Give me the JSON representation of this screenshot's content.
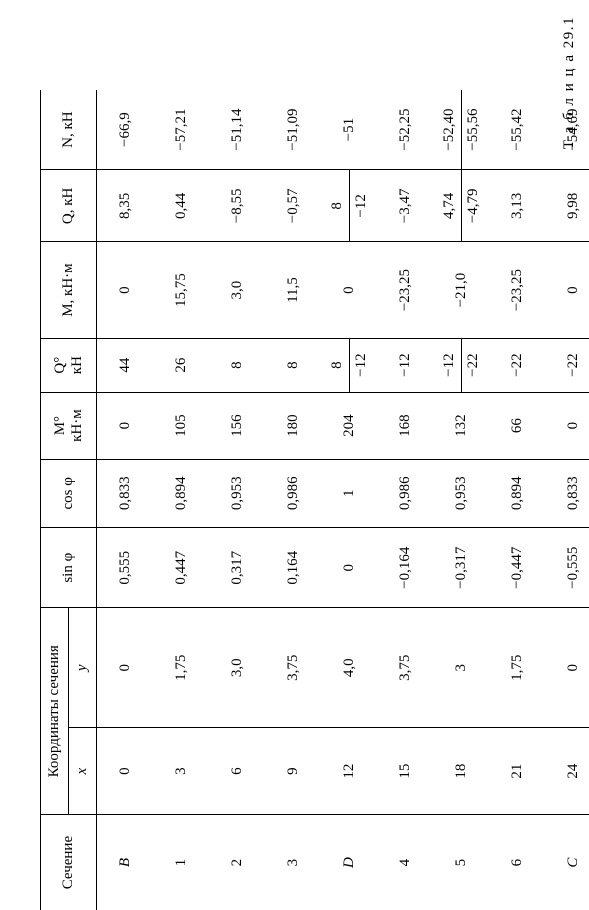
{
  "caption": "Т а б л и ц а  29.1",
  "headers": {
    "section": "Сечение",
    "coords_group": "Координаты сечения",
    "x": "x",
    "y": "y",
    "sinphi": "sin φ",
    "cosphi": "cos φ",
    "M0": "M°\nкН·м",
    "Q0": "Q°\nкН",
    "M": "M, кН·м",
    "Q": "Q, кН",
    "N": "N, кН"
  },
  "rows": [
    {
      "sec": "B",
      "x": "0",
      "y": "0",
      "sin": "0,555",
      "cos": "0,833",
      "M0": "0",
      "Q0": "44",
      "M": "0",
      "Q": "8,35",
      "Q2": "",
      "N": "−66,9",
      "N2": ""
    },
    {
      "sec": "1",
      "x": "3",
      "y": "1,75",
      "sin": "0,447",
      "cos": "0,894",
      "M0": "105",
      "Q0": "26",
      "M": "15,75",
      "Q": "0,44",
      "Q2": "",
      "N": "−57,21",
      "N2": ""
    },
    {
      "sec": "2",
      "x": "6",
      "y": "3,0",
      "sin": "0,317",
      "cos": "0,953",
      "M0": "156",
      "Q0": "8",
      "M": "3,0",
      "Q": "−8,55",
      "Q2": "",
      "N": "−51,14",
      "N2": ""
    },
    {
      "sec": "3",
      "x": "9",
      "y": "3,75",
      "sin": "0,164",
      "cos": "0,986",
      "M0": "180",
      "Q0": "8",
      "M": "11,5",
      "Q": "−0,57",
      "Q2": "",
      "N": "−51,09",
      "N2": ""
    },
    {
      "sec": "D",
      "x": "12",
      "y": "4,0",
      "sin": "0",
      "cos": "1",
      "M0": "204",
      "Q0": "8",
      "Q0b": "−12",
      "M": "0",
      "Q": "8",
      "Q2": "−12",
      "N": "−51",
      "N2": ""
    },
    {
      "sec": "4",
      "x": "15",
      "y": "3,75",
      "sin": "−0,164",
      "cos": "0,986",
      "M0": "168",
      "Q0": "−12",
      "M": "−23,25",
      "Q": "−3,47",
      "Q2": "",
      "N": "−52,25",
      "N2": ""
    },
    {
      "sec": "5",
      "x": "18",
      "y": "3",
      "sin": "−0,317",
      "cos": "0,953",
      "M0": "132",
      "Q0": "−12",
      "Q0b": "−22",
      "M": "−21,0",
      "Q": "4,74",
      "Q2": "−4,79",
      "N": "−52,40",
      "N2": "−55,56"
    },
    {
      "sec": "6",
      "x": "21",
      "y": "1,75",
      "sin": "−0,447",
      "cos": "0,894",
      "M0": "66",
      "Q0": "−22",
      "M": "−23,25",
      "Q": "3,13",
      "Q2": "",
      "N": "−55,42",
      "N2": ""
    },
    {
      "sec": "C",
      "x": "24",
      "y": "0",
      "sin": "−0,555",
      "cos": "0,833",
      "M0": "0",
      "Q0": "−22",
      "M": "0",
      "Q": "9,98",
      "Q2": "",
      "N": "−54,69",
      "N2": ""
    }
  ]
}
